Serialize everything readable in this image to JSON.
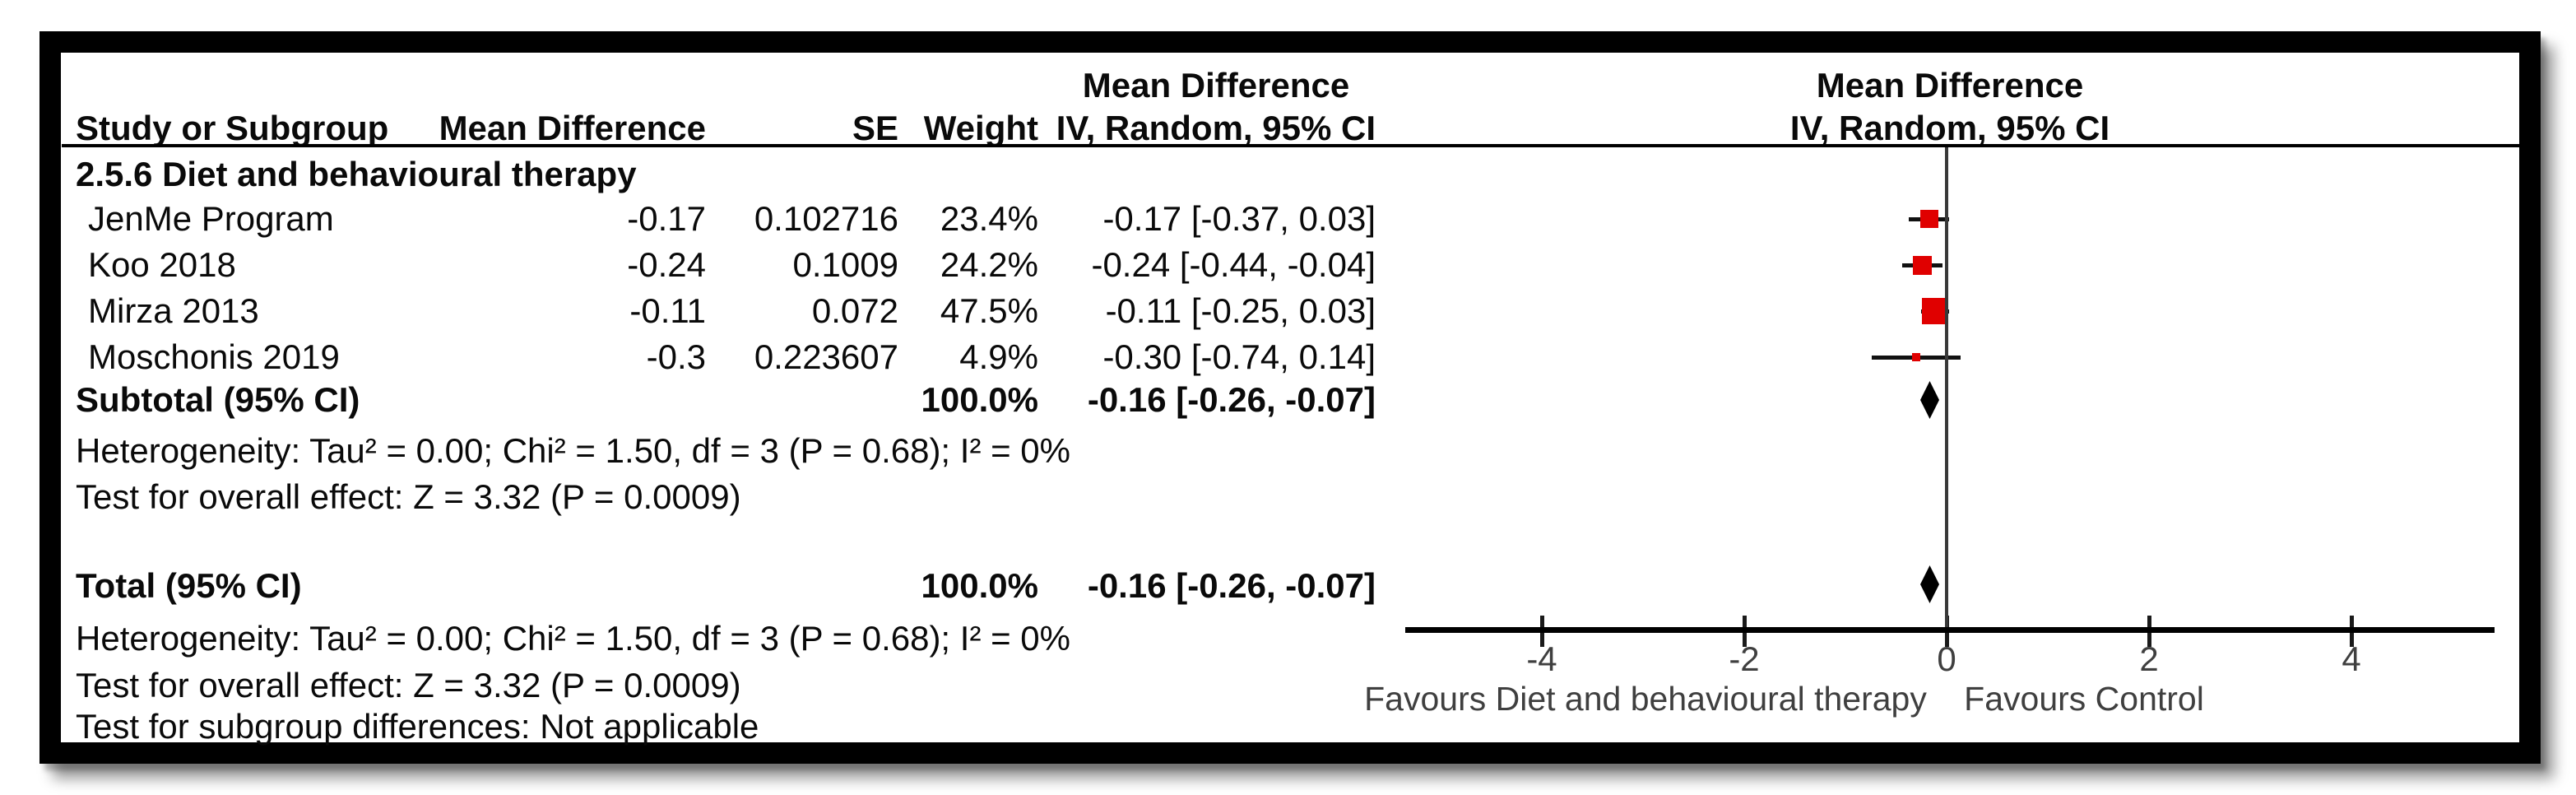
{
  "header": {
    "study": "Study or Subgroup",
    "md": "Mean Difference",
    "se": "SE",
    "weight": "Weight",
    "ci": "IV, Random, 95% CI",
    "effect_title": "Mean Difference",
    "plot_title": "Mean Difference",
    "plot_ci": "IV, Random, 95% CI"
  },
  "subgroup_title": "2.5.6 Diet and behavioural therapy",
  "studies": [
    {
      "name": "JenMe Program",
      "md": "-0.17",
      "se": "0.102716",
      "weight": "23.4%",
      "ci": "-0.17 [-0.37, 0.03]"
    },
    {
      "name": "Koo 2018",
      "md": "-0.24",
      "se": "0.1009",
      "weight": "24.2%",
      "ci": "-0.24 [-0.44, -0.04]"
    },
    {
      "name": "Mirza 2013",
      "md": "-0.11",
      "se": "0.072",
      "weight": "47.5%",
      "ci": "-0.11 [-0.25, 0.03]"
    },
    {
      "name": "Moschonis 2019",
      "md": "-0.3",
      "se": "0.223607",
      "weight": "4.9%",
      "ci": "-0.30 [-0.74, 0.14]"
    }
  ],
  "subtotal": {
    "label": "Subtotal (95% CI)",
    "weight": "100.0%",
    "ci": "-0.16 [-0.26, -0.07]"
  },
  "total": {
    "label": "Total (95% CI)",
    "weight": "100.0%",
    "ci": "-0.16 [-0.26, -0.07]"
  },
  "stats": {
    "subtotal_heterogeneity": "Heterogeneity: Tau² = 0.00; Chi² = 1.50, df = 3 (P = 0.68); I² = 0%",
    "subtotal_overall": "Test for overall effect: Z = 3.32 (P = 0.0009)",
    "total_heterogeneity": "Heterogeneity: Tau² = 0.00; Chi² = 1.50, df = 3 (P = 0.68); I² = 0%",
    "total_overall": "Test for overall effect: Z = 3.32 (P = 0.0009)",
    "subgroup_diff": "Test for subgroup differences: Not applicable"
  },
  "axis": {
    "favours_left": "Favours Diet and behavioural therapy",
    "favours_right": "Favours Control"
  },
  "colors": {
    "marker_red": "#e00000",
    "diamond_black": "#000000",
    "line_black": "#111111",
    "zero_line_gray": "#383838"
  },
  "chart_data": {
    "type": "forest",
    "measure": "Mean Difference",
    "method": "IV, Random, 95% CI",
    "subgroup": "2.5.6 Diet and behavioural therapy",
    "studies": [
      {
        "study": "JenMe Program",
        "mean_difference": -0.17,
        "se": 0.102716,
        "weight_pct": 23.4,
        "ci95": [
          -0.37,
          0.03
        ]
      },
      {
        "study": "Koo 2018",
        "mean_difference": -0.24,
        "se": 0.1009,
        "weight_pct": 24.2,
        "ci95": [
          -0.44,
          -0.04
        ]
      },
      {
        "study": "Mirza 2013",
        "mean_difference": -0.11,
        "se": 0.072,
        "weight_pct": 47.5,
        "ci95": [
          -0.25,
          0.03
        ]
      },
      {
        "study": "Moschonis 2019",
        "mean_difference": -0.3,
        "se": 0.223607,
        "weight_pct": 4.9,
        "ci95": [
          -0.74,
          0.14
        ]
      }
    ],
    "subtotal": {
      "effect": -0.16,
      "ci95": [
        -0.26,
        -0.07
      ],
      "weight_pct": 100.0
    },
    "total": {
      "effect": -0.16,
      "ci95": [
        -0.26,
        -0.07
      ],
      "weight_pct": 100.0
    },
    "heterogeneity": {
      "tau2": 0.0,
      "chi2": 1.5,
      "df": 3,
      "p": 0.68,
      "i2_pct": 0
    },
    "overall_effect": {
      "z": 3.32,
      "p": 0.0009
    },
    "x_axis": {
      "ticks": [
        -4,
        -2,
        0,
        2,
        4
      ],
      "range": [
        -5.35,
        5.4
      ],
      "grid": false,
      "label_left": "Favours Diet and behavioural therapy",
      "label_right": "Favours Control"
    }
  }
}
